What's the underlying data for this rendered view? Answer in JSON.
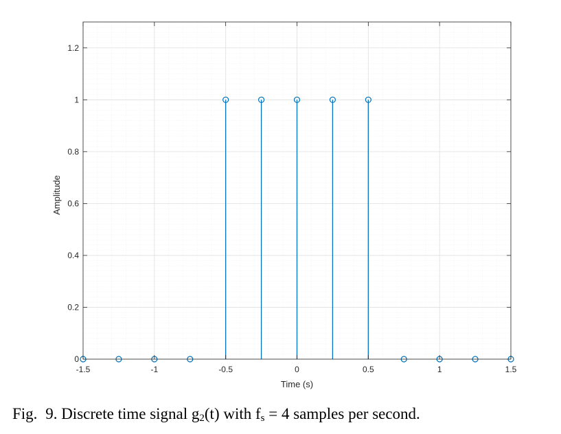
{
  "chart_data": {
    "type": "stem",
    "xlabel": "Time (s)",
    "ylabel": "Amplitude",
    "xlim": [
      -1.5,
      1.5
    ],
    "ylim": [
      0,
      1.3
    ],
    "xticks": [
      -1.5,
      -1,
      -0.5,
      0,
      0.5,
      1,
      1.5
    ],
    "xtick_labels": [
      "-1.5",
      "-1",
      "-0.5",
      "0",
      "0.5",
      "1",
      "1.5"
    ],
    "yticks": [
      0,
      0.2,
      0.4,
      0.6,
      0.8,
      1,
      1.2
    ],
    "ytick_labels": [
      "0",
      "0.2",
      "0.4",
      "0.6",
      "0.8",
      "1",
      "1.2"
    ],
    "grid": true,
    "minor_grid": true,
    "colors": {
      "stem": "#0072BD",
      "axis": "#262626",
      "major_grid": "#dfdfdf",
      "minor_grid": "#efefef"
    },
    "x": [
      -1.5,
      -1.25,
      -1,
      -0.75,
      -0.5,
      -0.25,
      0,
      0.25,
      0.5,
      0.75,
      1,
      1.25,
      1.5
    ],
    "y": [
      0,
      0,
      0,
      0,
      1,
      1,
      1,
      1,
      1,
      0,
      0,
      0,
      0
    ]
  },
  "caption": {
    "prefix": "Fig.",
    "number": "9.",
    "text_before_g": "Discrete time signal g",
    "g_subscript": "2",
    "text_after_g": "(t) with f",
    "f_subscript": "s",
    "text_after_f": " = 4 samples per second."
  }
}
